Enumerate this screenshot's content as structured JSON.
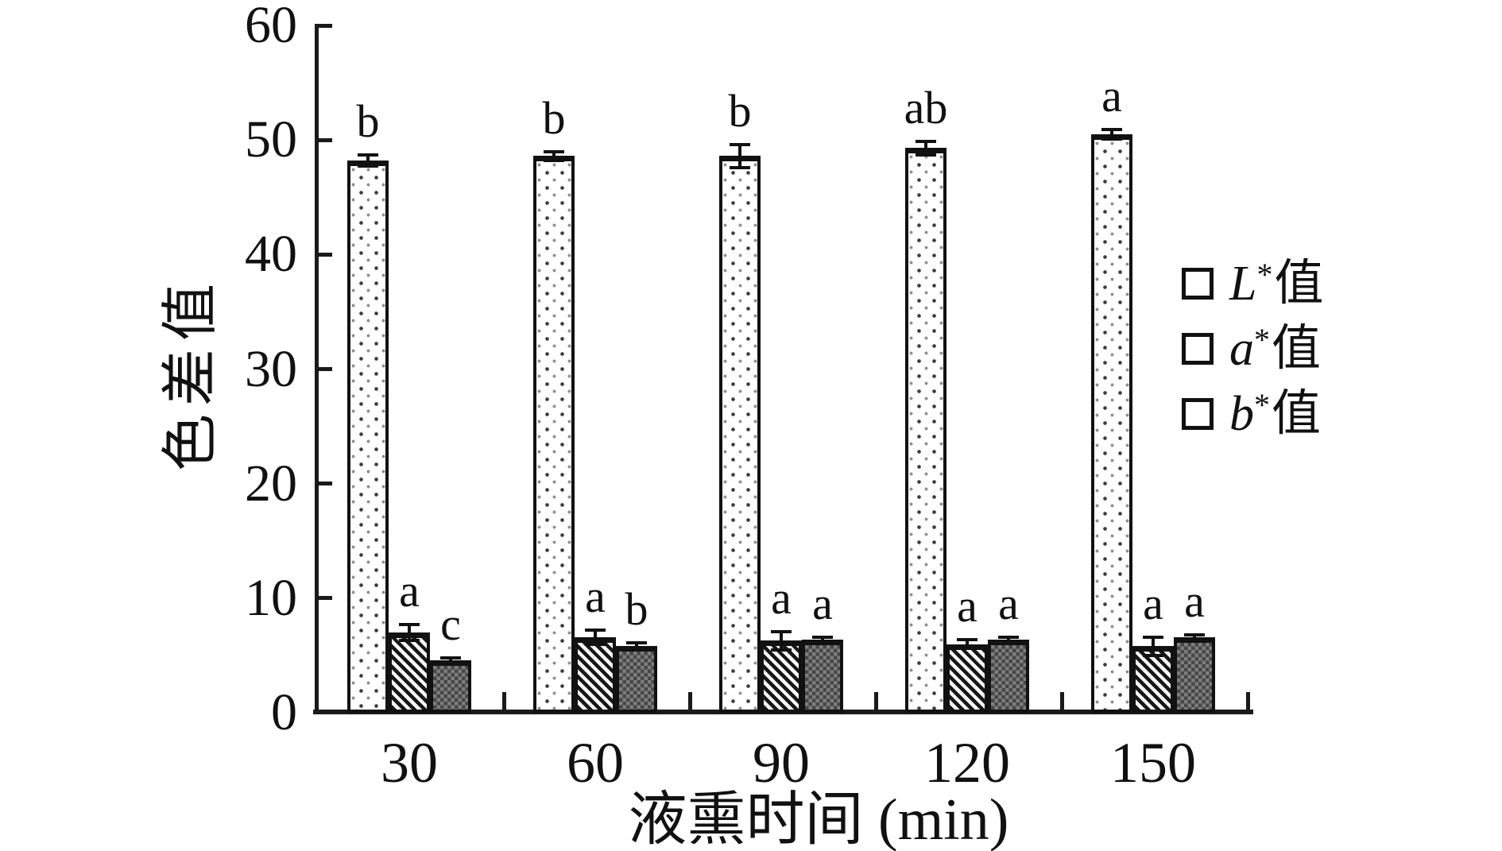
{
  "figure": {
    "background": "#ffffff",
    "ink": "#111111",
    "gray_fill": "#7d7d7d"
  },
  "chart_data": {
    "type": "bar",
    "title": "",
    "xlabel": "液熏时间 (min)",
    "ylabel": "色差值",
    "categories": [
      "30",
      "60",
      "90",
      "120",
      "150"
    ],
    "y_ticks": [
      0,
      10,
      20,
      30,
      40,
      50,
      60
    ],
    "ylim": [
      0,
      60
    ],
    "grid": false,
    "legend_position": "right",
    "series": [
      {
        "name": "L*值",
        "letter": "L",
        "star": "*",
        "suffix": "值",
        "pattern": "dots",
        "values": [
          48.2,
          48.6,
          48.6,
          49.3,
          50.5
        ],
        "errors": [
          0.5,
          0.4,
          1.0,
          0.6,
          0.4
        ],
        "sig_letters": [
          "b",
          "b",
          "b",
          "ab",
          "a"
        ]
      },
      {
        "name": "a*值",
        "letter": "a",
        "star": "*",
        "suffix": "值",
        "pattern": "diagonal-hatch",
        "values": [
          7.0,
          6.6,
          6.3,
          6.0,
          5.8
        ],
        "errors": [
          0.7,
          0.6,
          0.8,
          0.4,
          0.8
        ],
        "sig_letters": [
          "a",
          "a",
          "a",
          "a",
          "a"
        ]
      },
      {
        "name": "b*值",
        "letter": "b",
        "star": "*",
        "suffix": "值",
        "pattern": "dark-checker",
        "values": [
          4.6,
          5.8,
          6.4,
          6.4,
          6.6
        ],
        "errors": [
          0.2,
          0.3,
          0.2,
          0.2,
          0.2
        ],
        "sig_letters": [
          "c",
          "b",
          "a",
          "a",
          "a"
        ]
      }
    ]
  }
}
